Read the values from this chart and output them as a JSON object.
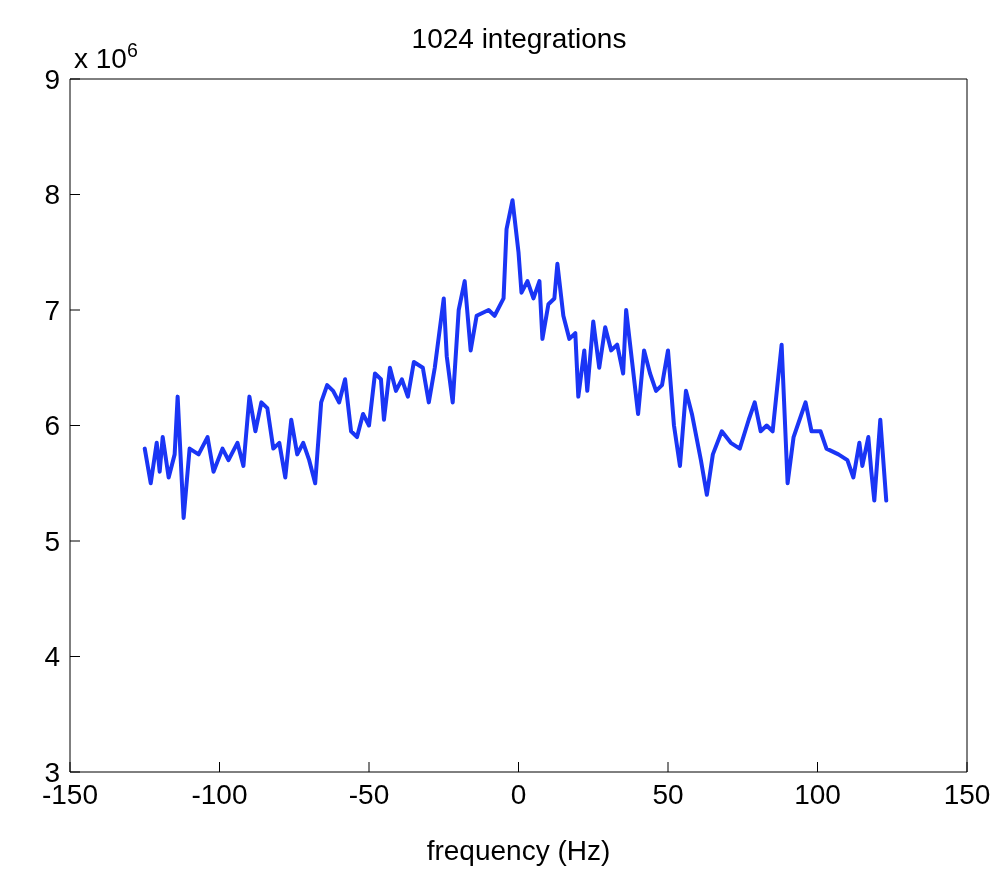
{
  "chart_data": {
    "type": "line",
    "title": "1024 integrations",
    "xlabel": "frequency (Hz)",
    "annotations": [
      "x 10$^{6}$"
    ],
    "xlim": [
      -150,
      150
    ],
    "xticks": [
      -150,
      -100,
      -50,
      0,
      50,
      100,
      150
    ],
    "ylim": [
      3,
      9
    ],
    "yticks": [
      3,
      4,
      5,
      6,
      7,
      8,
      9
    ],
    "line_style": "solid",
    "series": [
      {
        "color": "#1a35f5",
        "x": [
          -125,
          -123,
          -121,
          -120,
          -119,
          -117,
          -115,
          -114,
          -112,
          -110,
          -107,
          -104,
          -102,
          -99,
          -97,
          -94,
          -92,
          -90,
          -88,
          -86,
          -84,
          -82,
          -80,
          -78,
          -76,
          -74,
          -72,
          -70,
          -68,
          -66,
          -64,
          -62,
          -60,
          -58,
          -56,
          -54,
          -52,
          -50,
          -48,
          -46,
          -45,
          -43,
          -41,
          -39,
          -37,
          -35,
          -32,
          -30,
          -28,
          -25,
          -24,
          -22,
          -20,
          -18,
          -16,
          -14,
          -10,
          -8,
          -5,
          -4,
          -2,
          0,
          1,
          3,
          5,
          7,
          8,
          10,
          12,
          13,
          15,
          17,
          19,
          20,
          22,
          23,
          25,
          27,
          29,
          31,
          33,
          35,
          36,
          38,
          40,
          42,
          44,
          46,
          48,
          50,
          52,
          54,
          56,
          58,
          61,
          63,
          65,
          68,
          71,
          74,
          77,
          79,
          81,
          83,
          85,
          88,
          90,
          92,
          94,
          96,
          98,
          101,
          103,
          107,
          110,
          112,
          114,
          115,
          117,
          118,
          119,
          121,
          123
        ],
        "values": [
          5.8,
          5.5,
          5.85,
          5.6,
          5.9,
          5.55,
          5.75,
          6.25,
          5.2,
          5.8,
          5.75,
          5.9,
          5.6,
          5.8,
          5.7,
          5.85,
          5.65,
          6.25,
          5.95,
          6.2,
          6.15,
          5.8,
          5.85,
          5.55,
          6.05,
          5.75,
          5.85,
          5.7,
          5.5,
          6.2,
          6.35,
          6.3,
          6.2,
          6.4,
          5.95,
          5.9,
          6.1,
          6.0,
          6.45,
          6.4,
          6.05,
          6.5,
          6.3,
          6.4,
          6.25,
          6.55,
          6.5,
          6.2,
          6.5,
          7.1,
          6.6,
          6.2,
          7.0,
          7.25,
          6.65,
          6.95,
          7.0,
          6.95,
          7.1,
          7.7,
          7.95,
          7.5,
          7.15,
          7.25,
          7.1,
          7.25,
          6.75,
          7.05,
          7.1,
          7.4,
          6.95,
          6.75,
          6.8,
          6.25,
          6.65,
          6.3,
          6.9,
          6.5,
          6.85,
          6.65,
          6.7,
          6.45,
          7.0,
          6.55,
          6.1,
          6.65,
          6.45,
          6.3,
          6.35,
          6.65,
          6.0,
          5.65,
          6.3,
          6.1,
          5.7,
          5.4,
          5.75,
          5.95,
          5.85,
          5.8,
          6.05,
          6.2,
          5.95,
          6.0,
          5.95,
          6.7,
          5.5,
          5.9,
          6.05,
          6.2,
          5.95,
          5.95,
          5.8,
          5.75,
          5.7,
          5.55,
          5.85,
          5.65,
          5.9,
          5.6,
          5.35,
          6.05,
          5.35
        ]
      }
    ]
  }
}
